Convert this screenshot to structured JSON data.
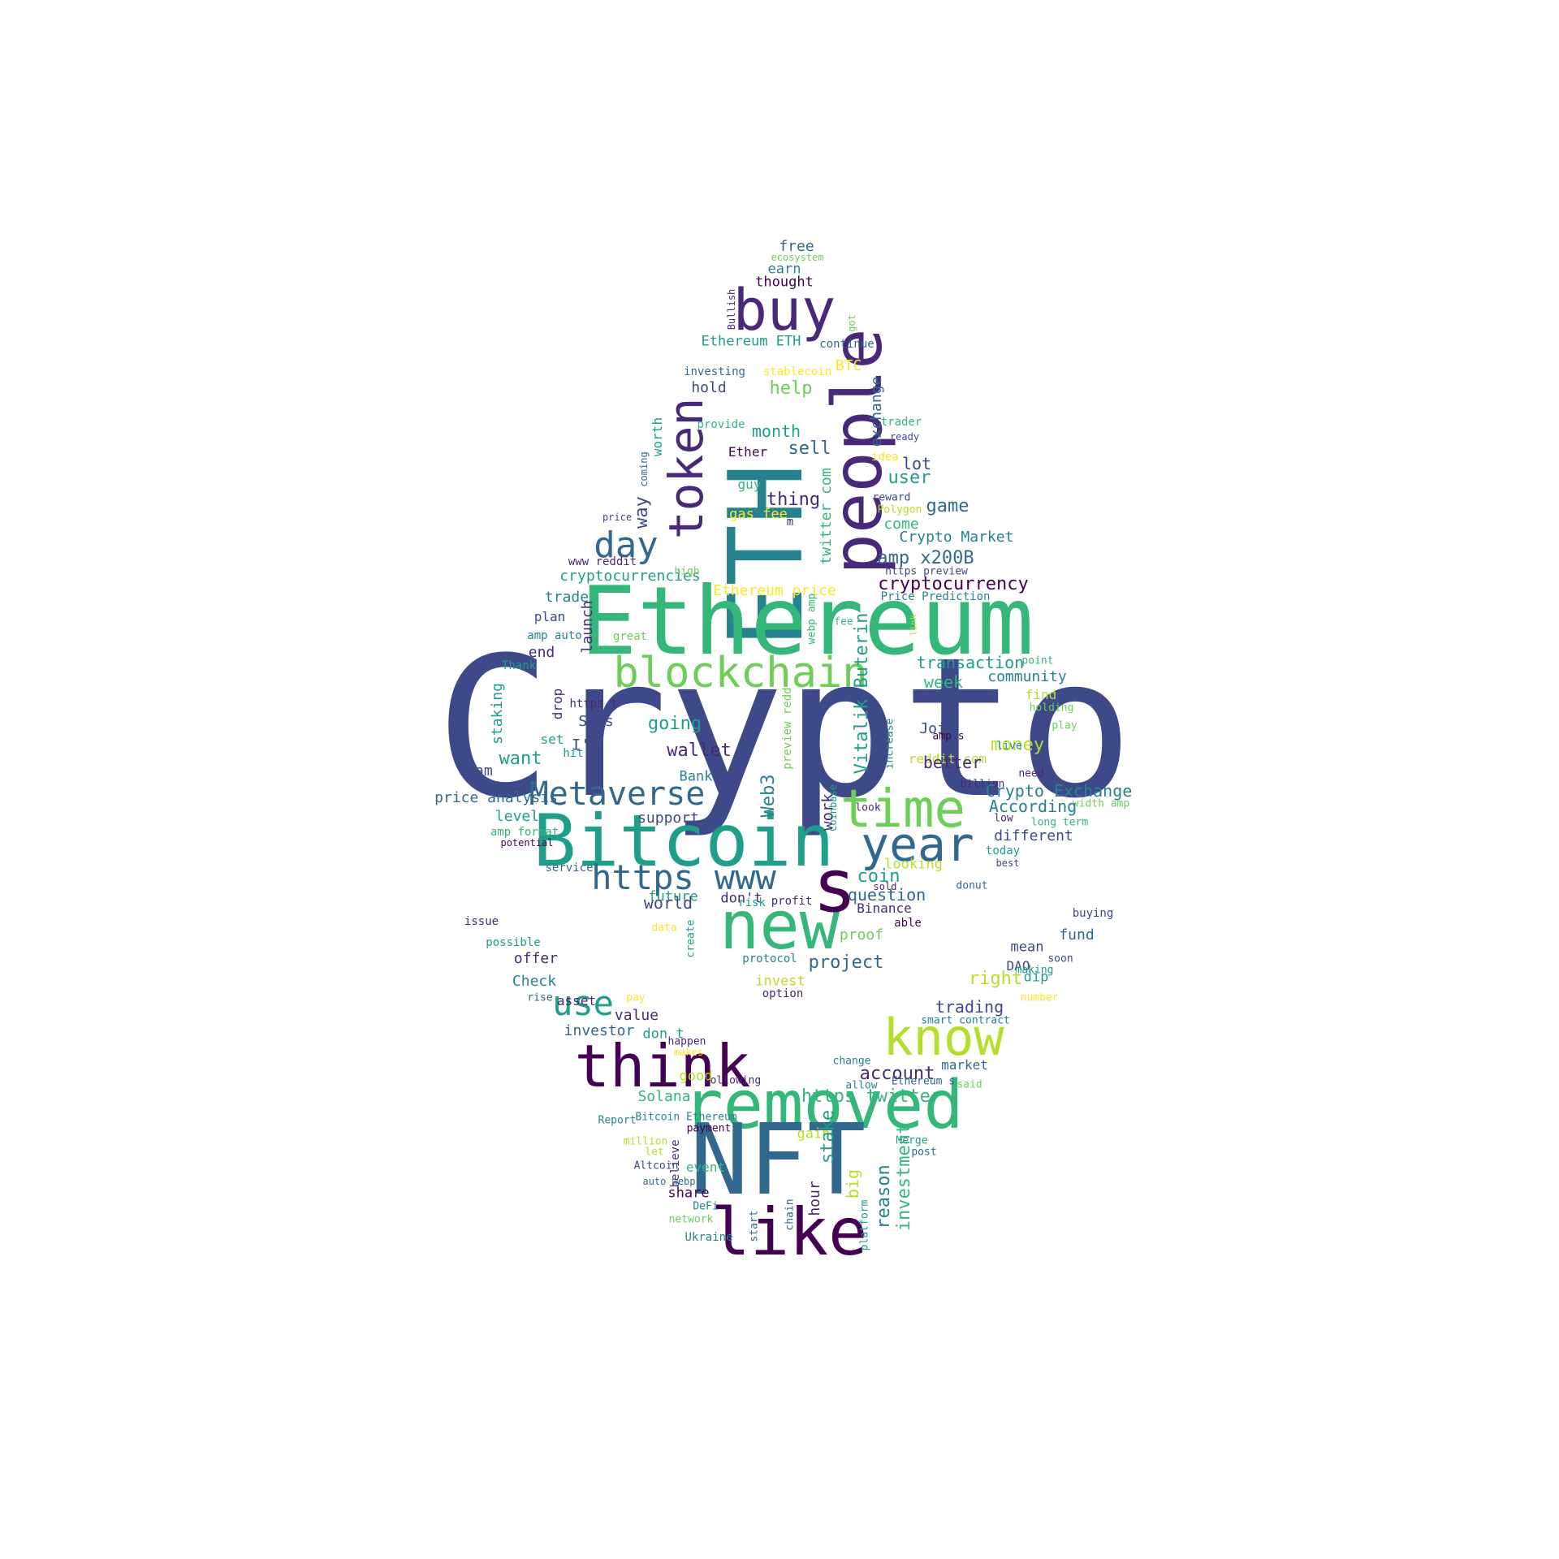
{
  "palette": {
    "p1": "#440154",
    "p2": "#482878",
    "p3": "#3e4989",
    "p4": "#31688e",
    "p5": "#26828e",
    "p6": "#1f9e89",
    "p7": "#35b779",
    "p8": "#6ece58",
    "p9": "#b5de2b",
    "p10": "#fde725"
  },
  "words": [
    {
      "text": "Crypto",
      "color": "p3"
    },
    {
      "text": "ETH",
      "color": "p5"
    },
    {
      "text": "Ethereum",
      "color": "p7"
    },
    {
      "text": "removed",
      "color": "p7"
    },
    {
      "text": "NFT",
      "color": "p4"
    },
    {
      "text": "buy",
      "color": "p2"
    },
    {
      "text": "people",
      "color": "p2"
    },
    {
      "text": "token",
      "color": "p2"
    },
    {
      "text": "Bitcoin",
      "color": "p6"
    },
    {
      "text": "new",
      "color": "p7"
    },
    {
      "text": "think",
      "color": "p1"
    },
    {
      "text": "know",
      "color": "p9"
    },
    {
      "text": "like",
      "color": "p1"
    },
    {
      "text": "time",
      "color": "p8"
    },
    {
      "text": "year",
      "color": "p4"
    },
    {
      "text": "blockchain",
      "color": "p8"
    },
    {
      "text": "s",
      "color": "p1"
    },
    {
      "text": "Metaverse",
      "color": "p4"
    },
    {
      "text": "https www",
      "color": "p4"
    },
    {
      "text": "day",
      "color": "p4"
    },
    {
      "text": "use",
      "color": "p6"
    },
    {
      "text": "free",
      "color": "p4"
    },
    {
      "text": "ecosystem",
      "color": "p8"
    },
    {
      "text": "earn",
      "color": "p5"
    },
    {
      "text": "thought",
      "color": "p1"
    },
    {
      "text": "Bullish",
      "color": "p2"
    },
    {
      "text": "got",
      "color": "p8"
    },
    {
      "text": "Ethereum ETH",
      "color": "p6"
    },
    {
      "text": "continue",
      "color": "p4"
    },
    {
      "text": "investing",
      "color": "p4"
    },
    {
      "text": "stablecoin",
      "color": "p10"
    },
    {
      "text": "BTC",
      "color": "p10"
    },
    {
      "text": "hold",
      "color": "p3"
    },
    {
      "text": "help",
      "color": "p8"
    },
    {
      "text": "exchange",
      "color": "p4"
    },
    {
      "text": "trader",
      "color": "p7"
    },
    {
      "text": "ready",
      "color": "p3"
    },
    {
      "text": "provide",
      "color": "p7"
    },
    {
      "text": "month",
      "color": "p6"
    },
    {
      "text": "sell",
      "color": "p4"
    },
    {
      "text": "Ether",
      "color": "p1"
    },
    {
      "text": "worth",
      "color": "p6"
    },
    {
      "text": "coming",
      "color": "p4"
    },
    {
      "text": "lot",
      "color": "p3"
    },
    {
      "text": "idea",
      "color": "p10"
    },
    {
      "text": "user",
      "color": "p6"
    },
    {
      "text": "guy",
      "color": "p7"
    },
    {
      "text": "thing",
      "color": "p2"
    },
    {
      "text": "twitter com",
      "color": "p7"
    },
    {
      "text": "reward",
      "color": "p3"
    },
    {
      "text": "Polygon",
      "color": "p9"
    },
    {
      "text": "game",
      "color": "p4"
    },
    {
      "text": "price",
      "color": "p3"
    },
    {
      "text": "gas fee",
      "color": "p10"
    },
    {
      "text": "way",
      "color": "p3"
    },
    {
      "text": "m",
      "color": "p2"
    },
    {
      "text": "come",
      "color": "p7"
    },
    {
      "text": "Crypto Market",
      "color": "p5"
    },
    {
      "text": "amp x200B",
      "color": "p4"
    },
    {
      "text": "www reddit",
      "color": "p2"
    },
    {
      "text": "https preview",
      "color": "p3"
    },
    {
      "text": "cryptocurrencies",
      "color": "p6"
    },
    {
      "text": "high",
      "color": "p8"
    },
    {
      "text": "cryptocurrency",
      "color": "p1"
    },
    {
      "text": "trade",
      "color": "p5"
    },
    {
      "text": "Ethereum price",
      "color": "p10"
    },
    {
      "text": "Price Prediction",
      "color": "p5"
    },
    {
      "text": "plan",
      "color": "p3"
    },
    {
      "text": "launch",
      "color": "p2"
    },
    {
      "text": "webp amp",
      "color": "p7"
    },
    {
      "text": "fee",
      "color": "p7"
    },
    {
      "text": "link",
      "color": "p9"
    },
    {
      "text": "amp auto",
      "color": "p5"
    },
    {
      "text": "great",
      "color": "p8"
    },
    {
      "text": "end",
      "color": "p2"
    },
    {
      "text": "Thank",
      "color": "p6"
    },
    {
      "text": "transaction",
      "color": "p6"
    },
    {
      "text": "point",
      "color": "p7"
    },
    {
      "text": "Vitalik Buterin",
      "color": "p6"
    },
    {
      "text": "community",
      "color": "p5"
    },
    {
      "text": "week",
      "color": "p7"
    },
    {
      "text": "find",
      "color": "p9"
    },
    {
      "text": "staking",
      "color": "p6"
    },
    {
      "text": "drop",
      "color": "p2"
    },
    {
      "text": "https t",
      "color": "p2"
    },
    {
      "text": "holding",
      "color": "p8"
    },
    {
      "text": "Says",
      "color": "p3"
    },
    {
      "text": "going",
      "color": "p6"
    },
    {
      "text": "Join",
      "color": "p3"
    },
    {
      "text": "play",
      "color": "p8"
    },
    {
      "text": "preview redd",
      "color": "p8"
    },
    {
      "text": "amp s",
      "color": "p1"
    },
    {
      "text": "set",
      "color": "p6"
    },
    {
      "text": "I'm",
      "color": "p3"
    },
    {
      "text": "money",
      "color": "p9"
    },
    {
      "text": "increase",
      "color": "p5"
    },
    {
      "text": "live",
      "color": "p5"
    },
    {
      "text": "want",
      "color": "p6"
    },
    {
      "text": "wallet",
      "color": "p2"
    },
    {
      "text": "hit",
      "color": "p6"
    },
    {
      "text": "reddit com",
      "color": "p9"
    },
    {
      "text": "better",
      "color": "p2"
    },
    {
      "text": "need",
      "color": "p2"
    },
    {
      "text": "team",
      "color": "p3"
    },
    {
      "text": "Bank",
      "color": "p5"
    },
    {
      "text": "billion",
      "color": "p2"
    },
    {
      "text": "Crypto Exchange",
      "color": "p5"
    },
    {
      "text": "price analysis",
      "color": "p4"
    },
    {
      "text": "Web3",
      "color": "p5"
    },
    {
      "text": "work",
      "color": "p2"
    },
    {
      "text": "Coinbase",
      "color": "p6"
    },
    {
      "text": "width amp",
      "color": "p8"
    },
    {
      "text": "level",
      "color": "p6"
    },
    {
      "text": "According",
      "color": "p5"
    },
    {
      "text": "support",
      "color": "p3"
    },
    {
      "text": "look",
      "color": "p2"
    },
    {
      "text": "low",
      "color": "p2"
    },
    {
      "text": "long term",
      "color": "p7"
    },
    {
      "text": "amp format",
      "color": "p7"
    },
    {
      "text": "potential",
      "color": "p1"
    },
    {
      "text": "different",
      "color": "p3"
    },
    {
      "text": "today",
      "color": "p6"
    },
    {
      "text": "looking",
      "color": "p9"
    },
    {
      "text": "best",
      "color": "p3"
    },
    {
      "text": "service",
      "color": "p4"
    },
    {
      "text": "donut",
      "color": "p4"
    },
    {
      "text": "coin",
      "color": "p6"
    },
    {
      "text": "sold",
      "color": "p2"
    },
    {
      "text": "question",
      "color": "p4"
    },
    {
      "text": "future",
      "color": "p6"
    },
    {
      "text": "don't",
      "color": "p2"
    },
    {
      "text": "profit",
      "color": "p2"
    },
    {
      "text": "world",
      "color": "p3"
    },
    {
      "text": "risk",
      "color": "p6"
    },
    {
      "text": "Binance",
      "color": "p2"
    },
    {
      "text": "buying",
      "color": "p3"
    },
    {
      "text": "issue",
      "color": "p2"
    },
    {
      "text": "able",
      "color": "p1"
    },
    {
      "text": "data",
      "color": "p10"
    },
    {
      "text": "create",
      "color": "p6"
    },
    {
      "text": "proof",
      "color": "p8"
    },
    {
      "text": "fund",
      "color": "p4"
    },
    {
      "text": "possible",
      "color": "p6"
    },
    {
      "text": "mean",
      "color": "p3"
    },
    {
      "text": "soon",
      "color": "p3"
    },
    {
      "text": "offer",
      "color": "p2"
    },
    {
      "text": "protocol",
      "color": "p5"
    },
    {
      "text": "project",
      "color": "p4"
    },
    {
      "text": "DAO",
      "color": "p3"
    },
    {
      "text": "making",
      "color": "p6"
    },
    {
      "text": "Check",
      "color": "p5"
    },
    {
      "text": "invest",
      "color": "p9"
    },
    {
      "text": "right",
      "color": "p9"
    },
    {
      "text": "dip",
      "color": "p6"
    },
    {
      "text": "asset",
      "color": "p2"
    },
    {
      "text": "option",
      "color": "p2"
    },
    {
      "text": "rise",
      "color": "p4"
    },
    {
      "text": "pay",
      "color": "p10"
    },
    {
      "text": "number",
      "color": "p10"
    },
    {
      "text": "trading",
      "color": "p3"
    },
    {
      "text": "value",
      "color": "p2"
    },
    {
      "text": "smart contract",
      "color": "p5"
    },
    {
      "text": "investor",
      "color": "p4"
    },
    {
      "text": "don t",
      "color": "p6"
    },
    {
      "text": "happen",
      "color": "p2"
    },
    {
      "text": "makes",
      "color": "p10"
    },
    {
      "text": "change",
      "color": "p5"
    },
    {
      "text": "market",
      "color": "p4"
    },
    {
      "text": "good",
      "color": "p9"
    },
    {
      "text": "account",
      "color": "p2"
    },
    {
      "text": "Ethereum s",
      "color": "p4"
    },
    {
      "text": "https twitter",
      "color": "p7"
    },
    {
      "text": "Solana",
      "color": "p7"
    },
    {
      "text": "Report",
      "color": "p5"
    },
    {
      "text": "following",
      "color": "p2"
    },
    {
      "text": "allow",
      "color": "p5"
    },
    {
      "text": "Bitcoin Ethereum",
      "color": "p5"
    },
    {
      "text": "said",
      "color": "p8"
    },
    {
      "text": "gain",
      "color": "p9"
    },
    {
      "text": "stake",
      "color": "p6"
    },
    {
      "text": "payment",
      "color": "p1"
    },
    {
      "text": "Merge",
      "color": "p6"
    },
    {
      "text": "million",
      "color": "p9"
    },
    {
      "text": "post",
      "color": "p4"
    },
    {
      "text": "let",
      "color": "p9"
    },
    {
      "text": "event",
      "color": "p7"
    },
    {
      "text": "believe",
      "color": "p2"
    },
    {
      "text": "big",
      "color": "p9"
    },
    {
      "text": "reason",
      "color": "p5"
    },
    {
      "text": "investment",
      "color": "p7"
    },
    {
      "text": "Altcoin",
      "color": "p3"
    },
    {
      "text": "auto webp",
      "color": "p4"
    },
    {
      "text": "hour",
      "color": "p2"
    },
    {
      "text": "share",
      "color": "p1"
    },
    {
      "text": "DeFi",
      "color": "p5"
    },
    {
      "text": "chain",
      "color": "p4"
    },
    {
      "text": "start",
      "color": "p4"
    },
    {
      "text": "platform",
      "color": "p6"
    },
    {
      "text": "network",
      "color": "p8"
    },
    {
      "text": "Ukraine",
      "color": "p5"
    }
  ]
}
